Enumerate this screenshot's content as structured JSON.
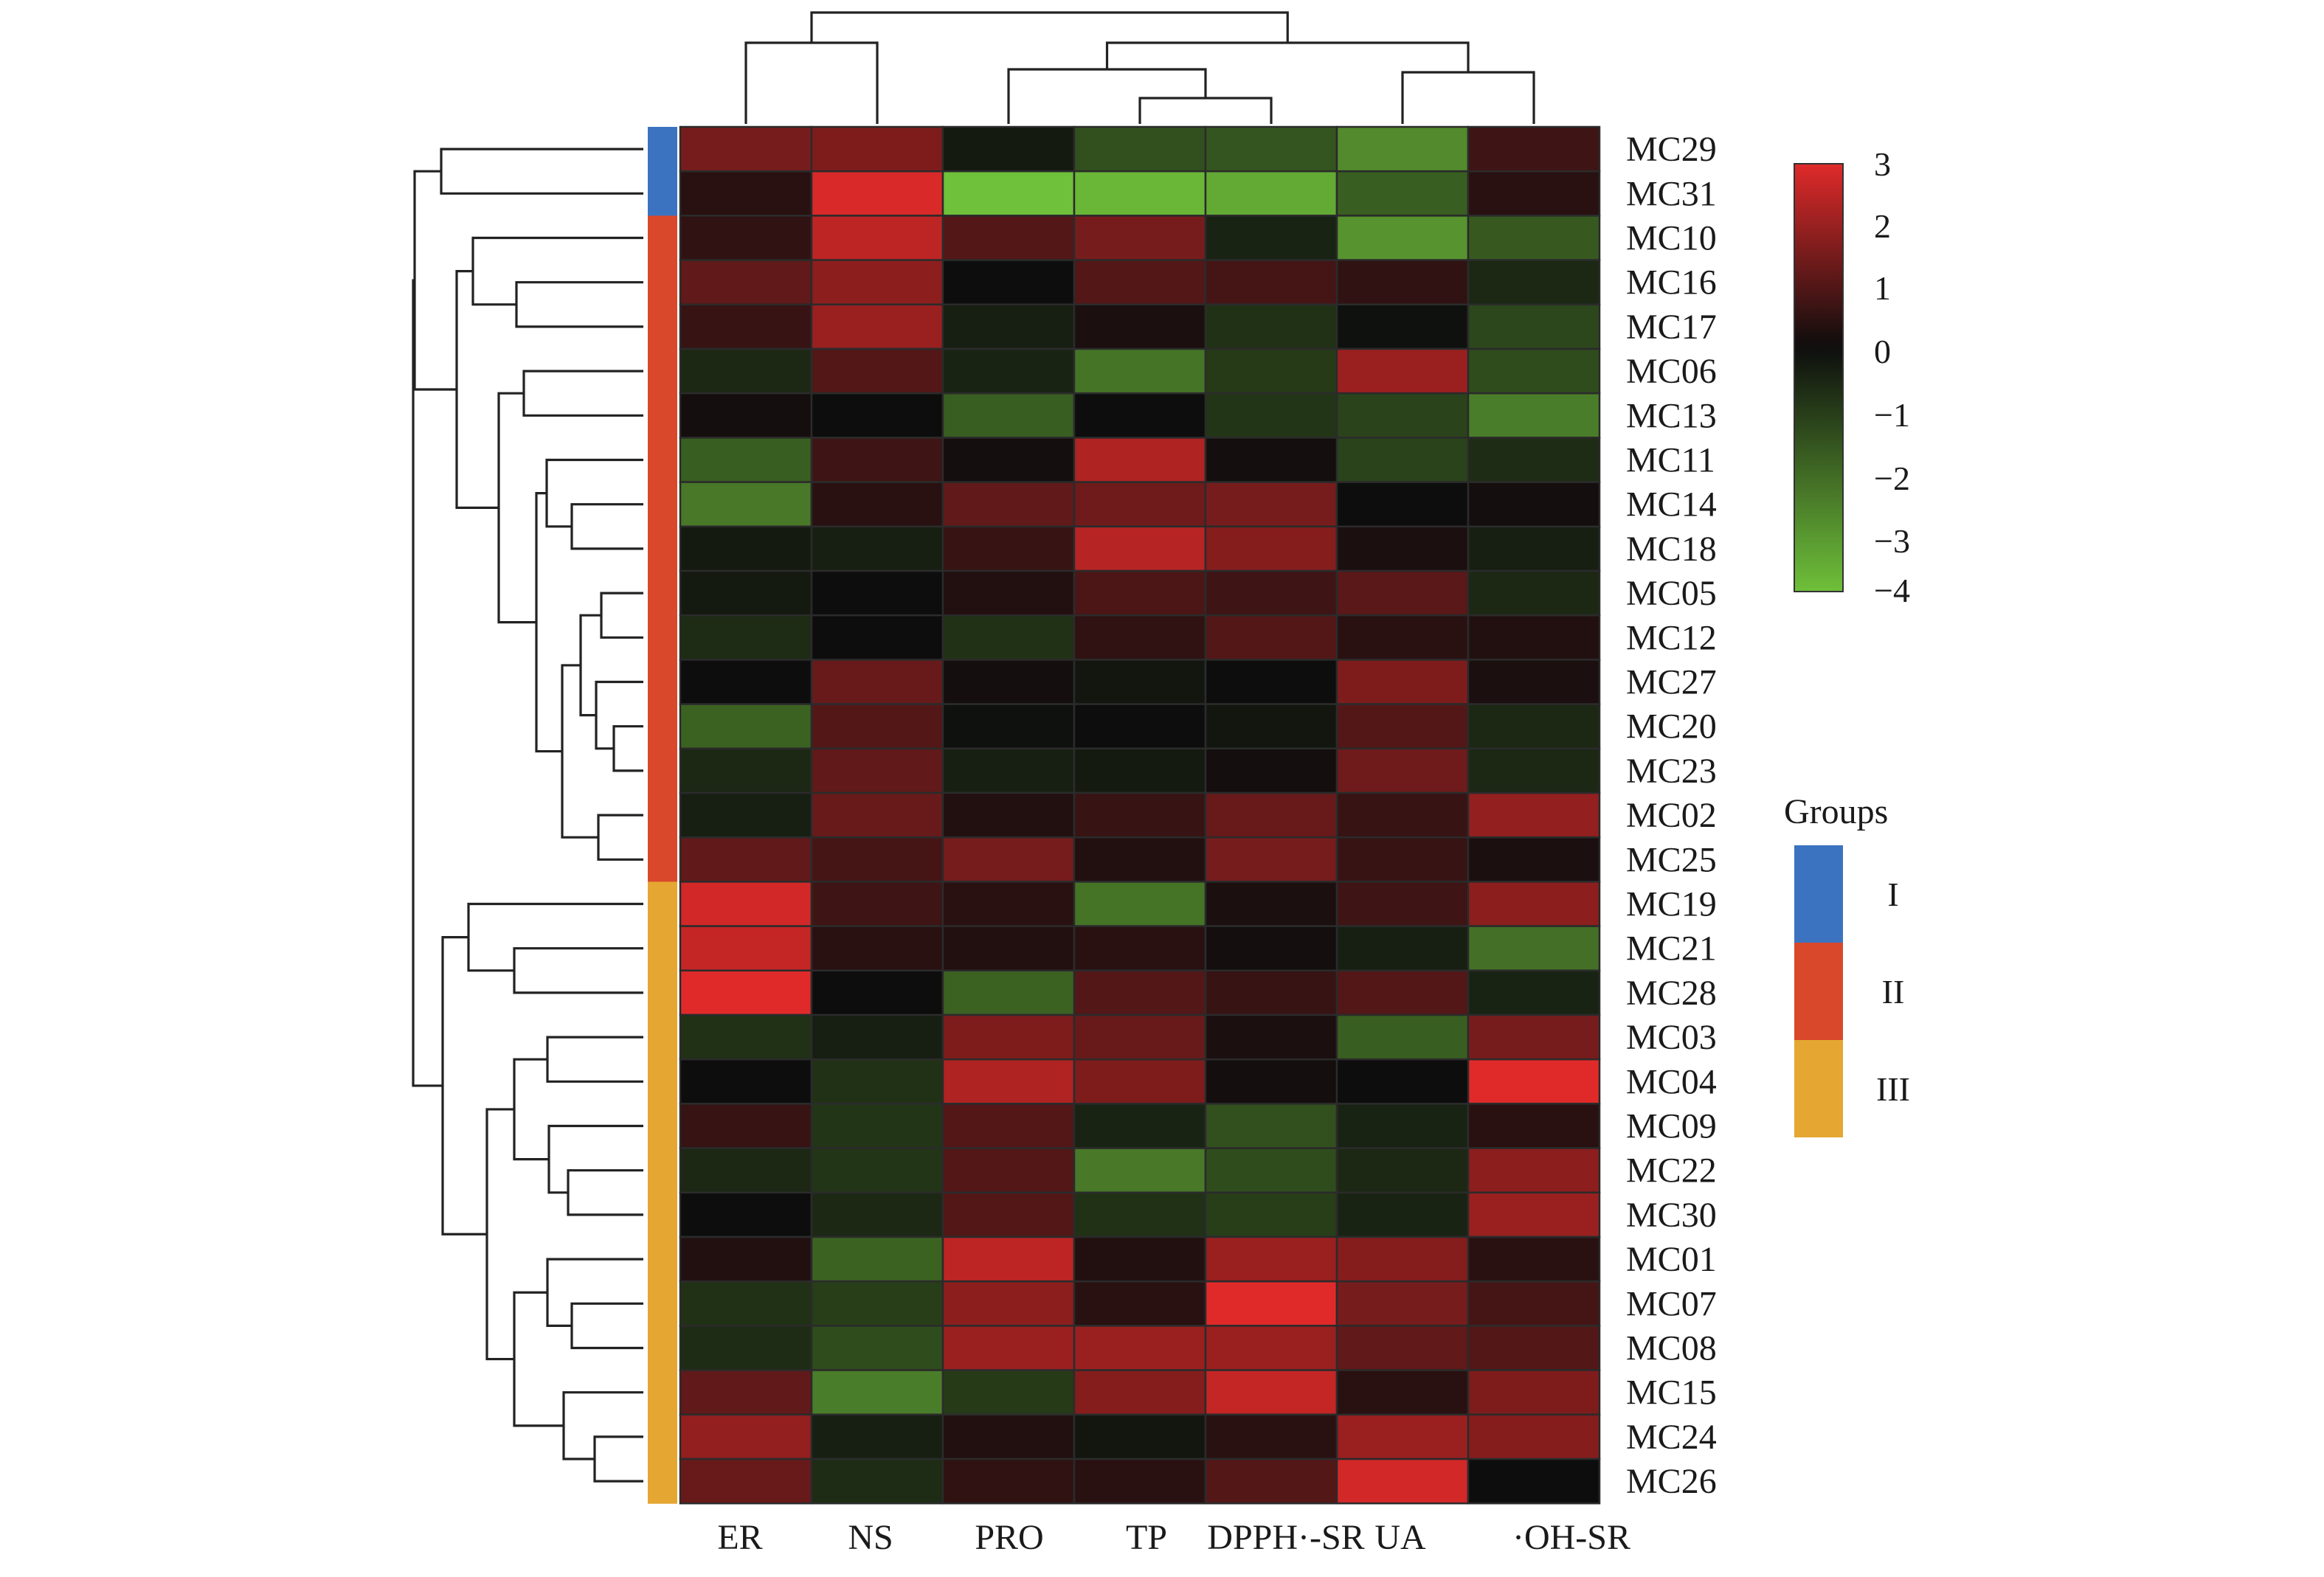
{
  "chart_data": {
    "type": "heatmap",
    "columns": [
      "ER",
      "NS",
      "PRO",
      "TP",
      "DPPH·-SR",
      "UA",
      "·OH-SR"
    ],
    "rows": [
      "MC29",
      "MC31",
      "MC10",
      "MC16",
      "MC17",
      "MC06",
      "MC13",
      "MC11",
      "MC14",
      "MC18",
      "MC05",
      "MC12",
      "MC27",
      "MC20",
      "MC23",
      "MC02",
      "MC25",
      "MC19",
      "MC21",
      "MC28",
      "MC03",
      "MC04",
      "MC09",
      "MC22",
      "MC30",
      "MC01",
      "MC07",
      "MC08",
      "MC15",
      "MC24",
      "MC26"
    ],
    "values": [
      [
        1.5,
        1.6,
        -0.3,
        -1.5,
        -1.6,
        -2.8,
        0.7
      ],
      [
        0.4,
        2.9,
        -4.0,
        -3.8,
        -3.5,
        -1.8,
        0.4
      ],
      [
        0.5,
        2.5,
        1.0,
        1.5,
        -0.5,
        -3.0,
        -1.7
      ],
      [
        1.2,
        1.8,
        0.0,
        1.0,
        0.8,
        0.5,
        -0.6
      ],
      [
        0.6,
        2.0,
        -0.4,
        0.2,
        -0.8,
        -0.1,
        -1.3
      ],
      [
        -0.6,
        1.0,
        -0.5,
        -2.3,
        -1.0,
        2.0,
        -1.4
      ],
      [
        0.1,
        0.0,
        -1.8,
        0.0,
        -0.9,
        -1.2,
        -2.5
      ],
      [
        -1.8,
        0.7,
        0.1,
        2.3,
        0.1,
        -1.2,
        -0.7
      ],
      [
        -2.4,
        0.4,
        1.2,
        1.4,
        1.5,
        0.0,
        0.1
      ],
      [
        -0.3,
        -0.4,
        0.6,
        2.4,
        1.7,
        0.2,
        -0.4
      ],
      [
        -0.3,
        0.0,
        0.3,
        0.9,
        0.7,
        1.1,
        -0.6
      ],
      [
        -0.7,
        0.0,
        -0.8,
        0.5,
        1.0,
        0.4,
        0.3
      ],
      [
        0.0,
        1.3,
        0.1,
        -0.2,
        0.0,
        1.6,
        0.2
      ],
      [
        -1.9,
        1.0,
        -0.1,
        0.0,
        -0.2,
        1.0,
        -0.6
      ],
      [
        -0.6,
        1.2,
        -0.4,
        -0.3,
        0.1,
        1.4,
        -0.6
      ],
      [
        -0.4,
        1.3,
        0.3,
        0.6,
        1.3,
        0.6,
        1.9
      ],
      [
        1.2,
        0.8,
        1.5,
        0.3,
        1.5,
        0.6,
        0.2
      ],
      [
        2.8,
        0.7,
        0.4,
        -2.3,
        0.2,
        0.7,
        1.8
      ],
      [
        2.6,
        0.4,
        0.3,
        0.4,
        0.1,
        -0.4,
        -2.2
      ],
      [
        3.0,
        0.0,
        -1.9,
        1.0,
        0.6,
        1.0,
        -0.5
      ],
      [
        -0.8,
        -0.4,
        1.6,
        1.3,
        0.2,
        -1.8,
        1.5
      ],
      [
        0.0,
        -0.8,
        2.3,
        1.6,
        0.1,
        0.0,
        3.0
      ],
      [
        0.6,
        -0.9,
        1.0,
        -0.5,
        -1.5,
        -0.5,
        0.4
      ],
      [
        -0.6,
        -0.9,
        1.0,
        -2.4,
        -1.4,
        -0.6,
        1.8
      ],
      [
        0.0,
        -0.6,
        1.0,
        -0.8,
        -1.1,
        -0.5,
        2.0
      ],
      [
        0.3,
        -1.9,
        2.5,
        0.3,
        2.0,
        1.7,
        0.4
      ],
      [
        -0.8,
        -1.1,
        1.8,
        0.4,
        3.0,
        1.5,
        0.8
      ],
      [
        -0.7,
        -1.4,
        2.0,
        2.0,
        2.0,
        1.2,
        1.0
      ],
      [
        1.2,
        -2.5,
        -1.0,
        1.7,
        2.6,
        0.4,
        1.6
      ],
      [
        1.9,
        -0.4,
        0.3,
        -0.2,
        0.4,
        2.0,
        1.7
      ],
      [
        1.3,
        -0.7,
        0.5,
        0.4,
        1.0,
        2.8,
        0.0
      ]
    ],
    "color_scale": {
      "min": -4,
      "max": 3,
      "ticks": [
        "3",
        "2",
        "1",
        "0",
        "−1",
        "−2",
        "−3",
        "−4"
      ],
      "high_color": "#e02a2a",
      "mid_color": "#0d0d0d",
      "low_color": "#6fc03a"
    },
    "groups": {
      "title": "Groups",
      "items": [
        {
          "label": "I",
          "color": "#3b73c0"
        },
        {
          "label": "II",
          "color": "#d9482a"
        },
        {
          "label": "III",
          "color": "#e5a632"
        }
      ],
      "row_group": [
        0,
        0,
        1,
        1,
        1,
        1,
        1,
        1,
        1,
        1,
        1,
        1,
        1,
        1,
        1,
        1,
        1,
        2,
        2,
        2,
        2,
        2,
        2,
        2,
        2,
        2,
        2,
        2,
        2,
        2,
        2
      ]
    }
  }
}
